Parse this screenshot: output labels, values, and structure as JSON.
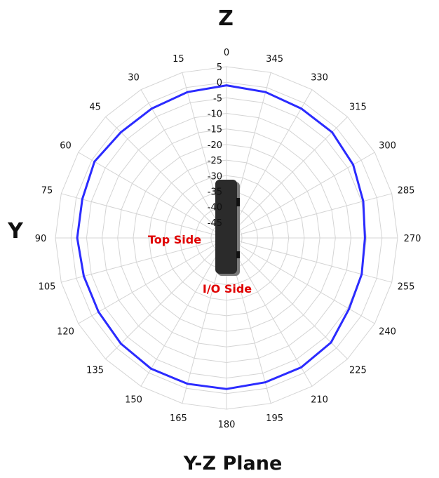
{
  "chart_data": {
    "type": "polar-line",
    "title": "Y-Z Plane",
    "axis_top_label": "Z",
    "axis_left_label": "Y",
    "angle_direction": "counterclockwise",
    "angles": [
      0,
      15,
      30,
      45,
      60,
      75,
      90,
      105,
      120,
      135,
      150,
      165,
      180,
      195,
      210,
      225,
      240,
      255,
      270,
      285,
      300,
      315,
      330,
      345
    ],
    "angle_labels": [
      "0",
      "15",
      "30",
      "45",
      "60",
      "75",
      "90",
      "105",
      "120",
      "135",
      "150",
      "165",
      "180",
      "195",
      "210",
      "225",
      "240",
      "255",
      "270",
      "285",
      "300",
      "315",
      "330",
      "345"
    ],
    "radial_ticks": [
      5,
      0,
      -5,
      -10,
      -15,
      -20,
      -25,
      -30,
      -35,
      -40,
      -45
    ],
    "radial_range": [
      -50,
      5
    ],
    "series": [
      {
        "color": "#2b2bff",
        "values": [
          -1,
          -1.5,
          -2,
          -2,
          -1,
          -2,
          -2,
          -2.5,
          -2.5,
          -2,
          -1.5,
          -1.5,
          -1.5,
          -2,
          -2,
          -2.5,
          -4.5,
          -5,
          -5.5,
          -4.5,
          -3,
          -2,
          -2,
          -1.5
        ]
      }
    ],
    "annotations": [
      {
        "text": "Top Side",
        "color": "#e00000"
      },
      {
        "text": "I/O Side",
        "color": "#e00000"
      }
    ]
  }
}
